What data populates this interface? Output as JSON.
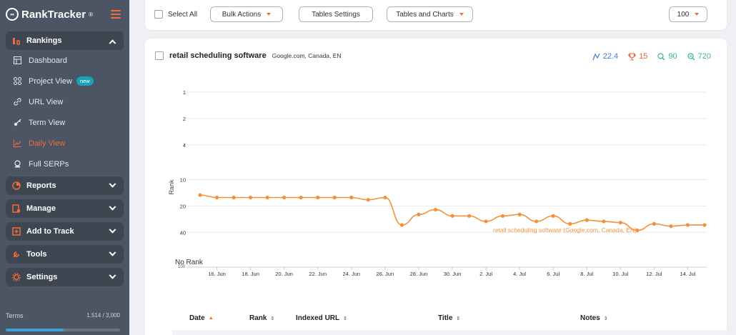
{
  "app": {
    "logo_text": "RankTracker",
    "logo_tm": "®",
    "logo_glyph": "••"
  },
  "sidebar": {
    "groups": [
      {
        "label": "Rankings",
        "icon": "rankings-icon",
        "expanded": true
      },
      {
        "label": "Reports",
        "icon": "reports-icon"
      },
      {
        "label": "Manage",
        "icon": "manage-icon"
      },
      {
        "label": "Add to Track",
        "icon": "add-icon"
      },
      {
        "label": "Tools",
        "icon": "tools-icon"
      },
      {
        "label": "Settings",
        "icon": "gear-icon"
      }
    ],
    "items": [
      {
        "label": "Dashboard",
        "icon": "dashboard-icon"
      },
      {
        "label": "Project View",
        "icon": "project-icon",
        "badge": "new"
      },
      {
        "label": "URL View",
        "icon": "link-icon"
      },
      {
        "label": "Term View",
        "icon": "key-icon"
      },
      {
        "label": "Daily View",
        "icon": "chart-icon",
        "active": true
      },
      {
        "label": "Full SERPs",
        "icon": "serp-icon"
      }
    ],
    "terms_label": "Terms",
    "terms_count": "1,514 / 3,000",
    "terms_used": 1514,
    "terms_total": 3000
  },
  "toolbar": {
    "select_all": "Select All",
    "bulk_actions": "Bulk Actions",
    "tables_settings": "Tables Settings",
    "tables_charts": "Tables and Charts",
    "page_size": "100"
  },
  "card": {
    "keyword": "retail scheduling software",
    "engine": "Google.com, Canada, EN",
    "stats": [
      {
        "icon": "avg-rank-icon",
        "value": "22.4",
        "color": "#3b82c4"
      },
      {
        "icon": "trophy-icon",
        "value": "15",
        "color": "#ef5b3a"
      },
      {
        "icon": "search-volume-icon",
        "value": "90",
        "color": "#3bb58a"
      },
      {
        "icon": "competition-icon",
        "value": "720",
        "color": "#3bb58a"
      }
    ]
  },
  "chart_data": {
    "type": "line",
    "ylabel": "Rank",
    "y_ticks": [
      "1",
      "2",
      "4",
      "10",
      "20",
      "40",
      "No Rank"
    ],
    "y_tick_values": [
      1,
      2,
      4,
      10,
      20,
      40,
      100
    ],
    "y_scale": "log",
    "y_reversed": true,
    "no_rank_sub": "100",
    "x_ticks": [
      "16. Jun",
      "18. Jun",
      "20. Jun",
      "22. Jun",
      "24. Jun",
      "26. Jun",
      "28. Jun",
      "30. Jun",
      "2. Jul",
      "4. Jul",
      "6. Jul",
      "8. Jul",
      "10. Jul",
      "12. Jul",
      "14. Jul"
    ],
    "series": [
      {
        "name": "retail scheduling software (Google.com, Canada, EN)",
        "color": "#f5913a",
        "x": [
          "15. Jun",
          "16. Jun",
          "17. Jun",
          "18. Jun",
          "19. Jun",
          "20. Jun",
          "21. Jun",
          "22. Jun",
          "23. Jun",
          "24. Jun",
          "25. Jun",
          "26. Jun",
          "27. Jun",
          "28. Jun",
          "29. Jun",
          "30. Jun",
          "1. Jul",
          "2. Jul",
          "3. Jul",
          "4. Jul",
          "5. Jul",
          "6. Jul",
          "7. Jul",
          "8. Jul",
          "9. Jul",
          "10. Jul",
          "11. Jul",
          "12. Jul",
          "13. Jul",
          "14. Jul",
          "15. Jul"
        ],
        "values": [
          15,
          16,
          16,
          16,
          16,
          16,
          16,
          16,
          16,
          16,
          17,
          16,
          33,
          25,
          22,
          26,
          26,
          30,
          26,
          25,
          30,
          26,
          32,
          29,
          30,
          31,
          38,
          32,
          34,
          33,
          33
        ]
      }
    ]
  },
  "table": {
    "columns": [
      {
        "label": "Date",
        "sort": "▲",
        "active": true
      },
      {
        "label": "Rank",
        "sort": "⇕"
      },
      {
        "label": "Indexed URL",
        "sort": "⇕"
      },
      {
        "label": "Title",
        "sort": "⇕"
      },
      {
        "label": "Notes",
        "sort": "⇕"
      }
    ]
  }
}
